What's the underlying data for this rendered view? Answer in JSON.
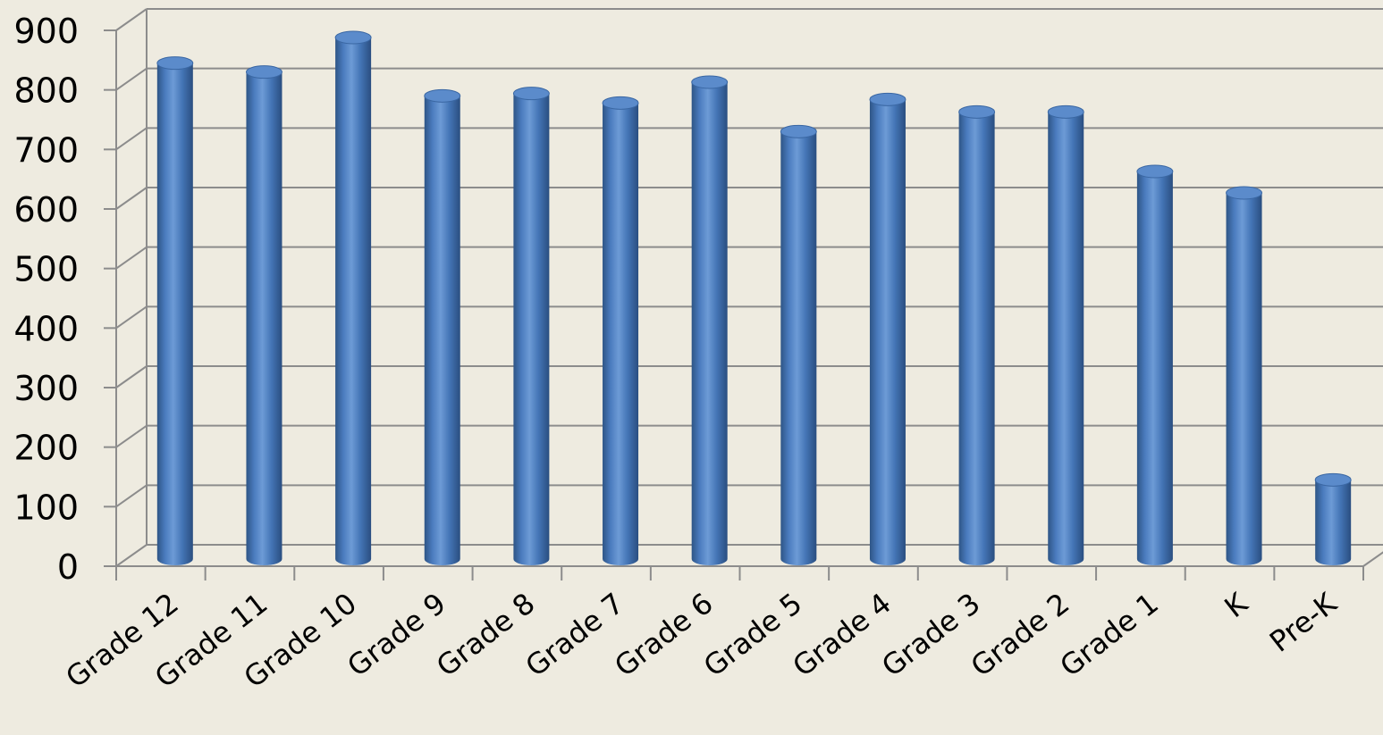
{
  "chart_data": {
    "type": "bar",
    "title": "",
    "xlabel": "",
    "ylabel": "",
    "categories": [
      "Grade 12",
      "Grade 11",
      "Grade 10",
      "Grade 9",
      "Grade 8",
      "Grade 7",
      "Grade 6",
      "Grade 5",
      "Grade 4",
      "Grade 3",
      "Grade 2",
      "Grade 1",
      "K",
      "Pre-K"
    ],
    "values": [
      815,
      800,
      858,
      760,
      764,
      748,
      783,
      700,
      754,
      733,
      733,
      633,
      597,
      115
    ],
    "ylim": [
      0,
      900
    ],
    "y_ticks": [
      "0",
      "100",
      "200",
      "300",
      "400",
      "500",
      "600",
      "700",
      "800",
      "900"
    ],
    "grid": true,
    "bar_style": "3d-cylinder",
    "colors": {
      "background": "#EEEBE0",
      "bar": "#4F81BD",
      "bar_dark": "#2C4F7F",
      "bar_light": "#8FB2E0",
      "gridline": "#8C8C8C"
    }
  }
}
